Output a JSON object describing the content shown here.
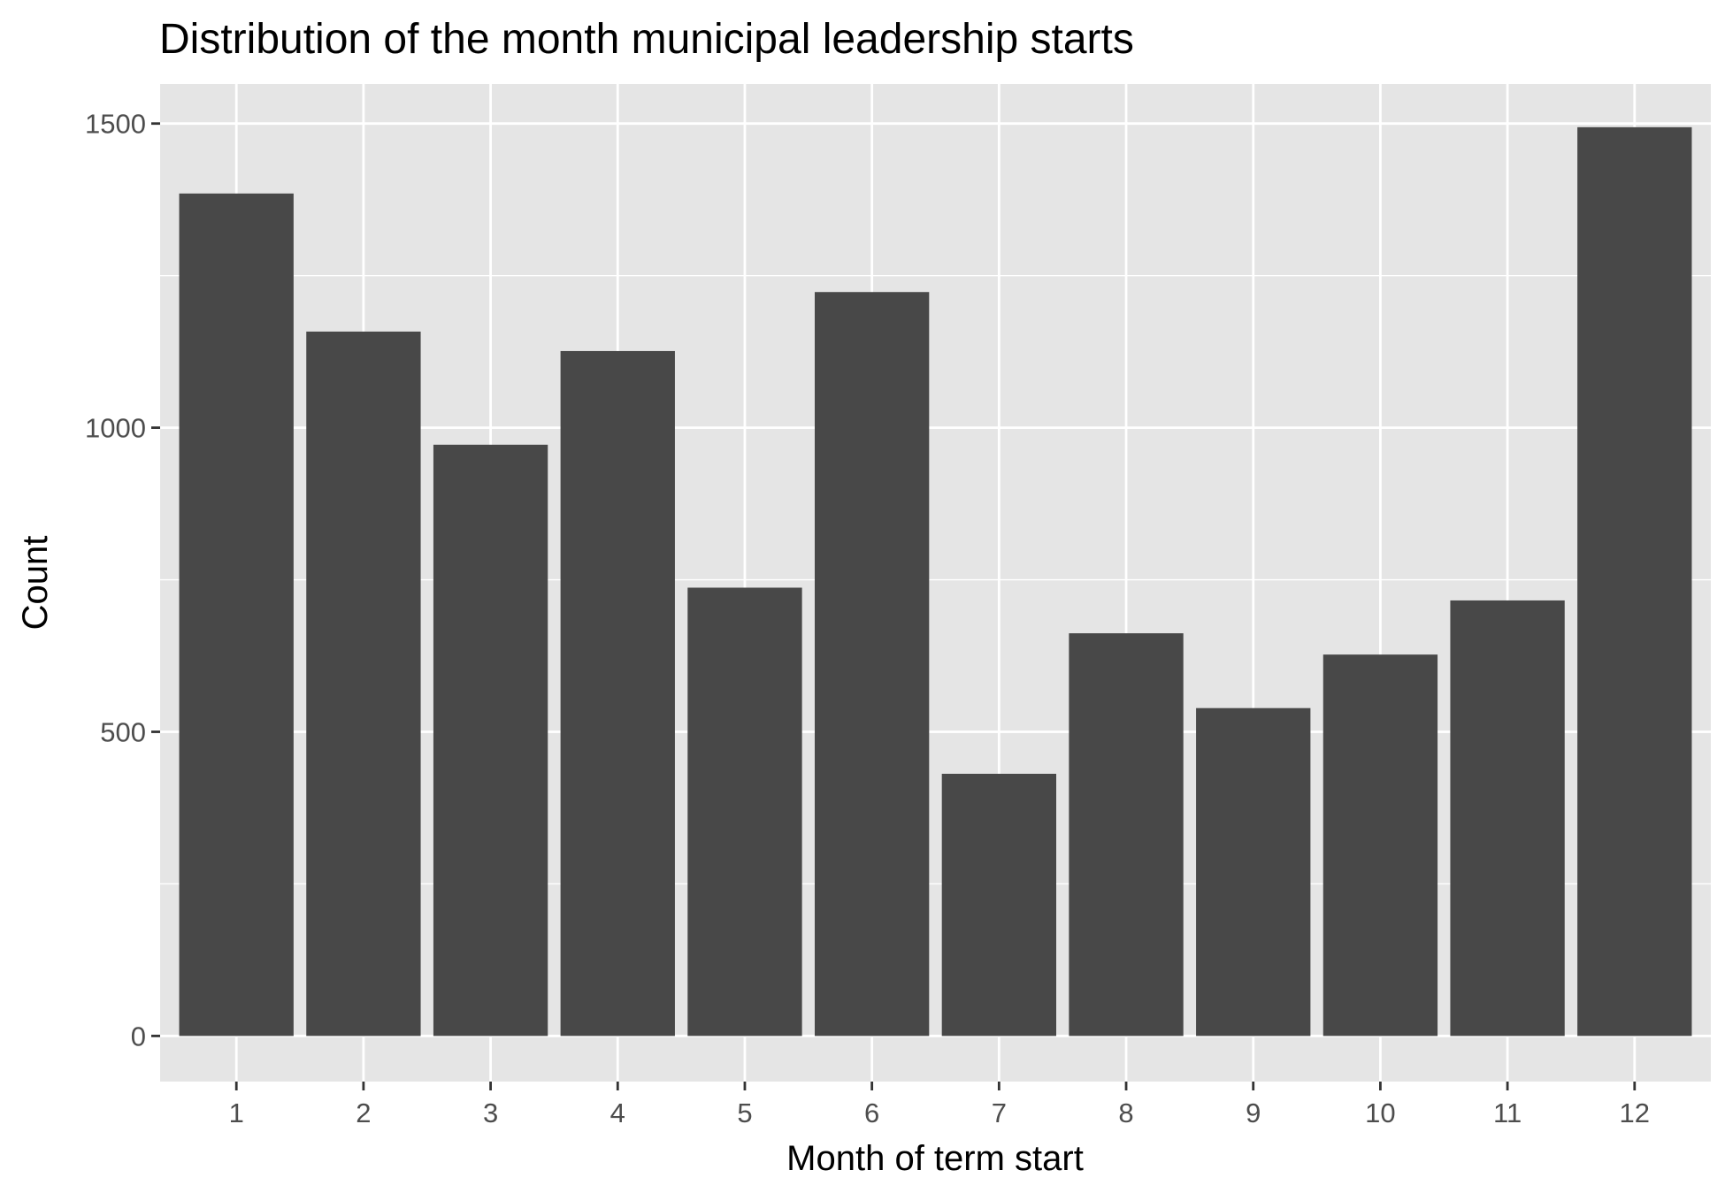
{
  "chart_data": {
    "type": "bar",
    "title": "Distribution of the month municipal leadership starts",
    "xlabel": "Month of term start",
    "ylabel": "Count",
    "categories": [
      "1",
      "2",
      "3",
      "4",
      "5",
      "6",
      "7",
      "8",
      "9",
      "10",
      "11",
      "12"
    ],
    "values": [
      1385,
      1158,
      972,
      1126,
      737,
      1223,
      431,
      662,
      539,
      627,
      716,
      1494
    ],
    "ylim": [
      -75,
      1565
    ],
    "yticks": [
      0,
      500,
      1000,
      1500
    ],
    "ytick_labels": [
      "0",
      "500",
      "1000",
      "1500"
    ],
    "grid": true,
    "legend": "none",
    "colors": {
      "bar": "#484848",
      "panel": "#e5e5e5",
      "grid": "#ffffff",
      "tick": "#333333"
    }
  }
}
